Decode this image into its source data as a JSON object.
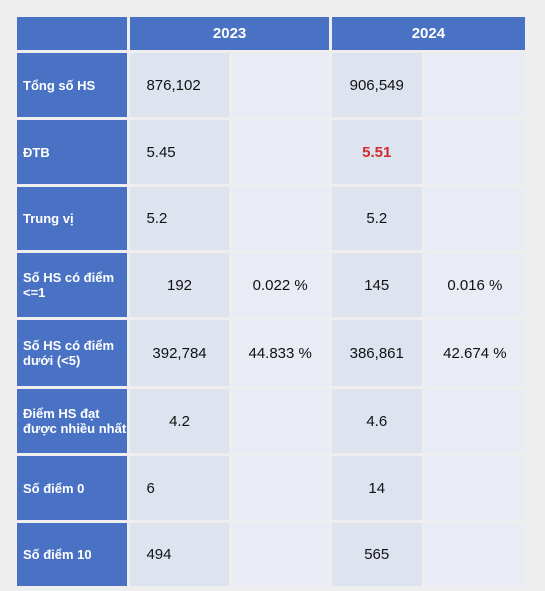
{
  "header": {
    "col_2023": "2023",
    "col_2024": "2024"
  },
  "rows": [
    {
      "label": "Tổng số HS",
      "v2023": "876,102",
      "p2023": "",
      "v2024": "906,549",
      "p2024": ""
    },
    {
      "label": "ĐTB",
      "v2023": "5.45",
      "p2023": "",
      "v2024": "5.51",
      "p2024": ""
    },
    {
      "label": "Trung vị",
      "v2023": "5.2",
      "p2023": "",
      "v2024": "5.2",
      "p2024": ""
    },
    {
      "label": "Số HS có điểm <=1",
      "v2023": "192",
      "p2023": "0.022 %",
      "v2024": "145",
      "p2024": "0.016 %"
    },
    {
      "label": "Số HS có điểm dưới (<5)",
      "v2023": "392,784",
      "p2023": "44.833 %",
      "v2024": "386,861",
      "p2024": "42.674 %"
    },
    {
      "label": "Điểm HS đạt được nhiều nhất",
      "v2023": "4.2",
      "p2023": "",
      "v2024": "4.6",
      "p2024": ""
    },
    {
      "label": "Số điểm 0",
      "v2023": "6",
      "p2023": "",
      "v2024": "14",
      "p2024": ""
    },
    {
      "label": "Số điểm 10",
      "v2023": "494",
      "p2023": "",
      "v2024": "565",
      "p2024": ""
    }
  ],
  "colors": {
    "header_blue": "#4a72c4",
    "cell_bg": "#dde3ef",
    "highlight_red": "#d22b2b"
  }
}
